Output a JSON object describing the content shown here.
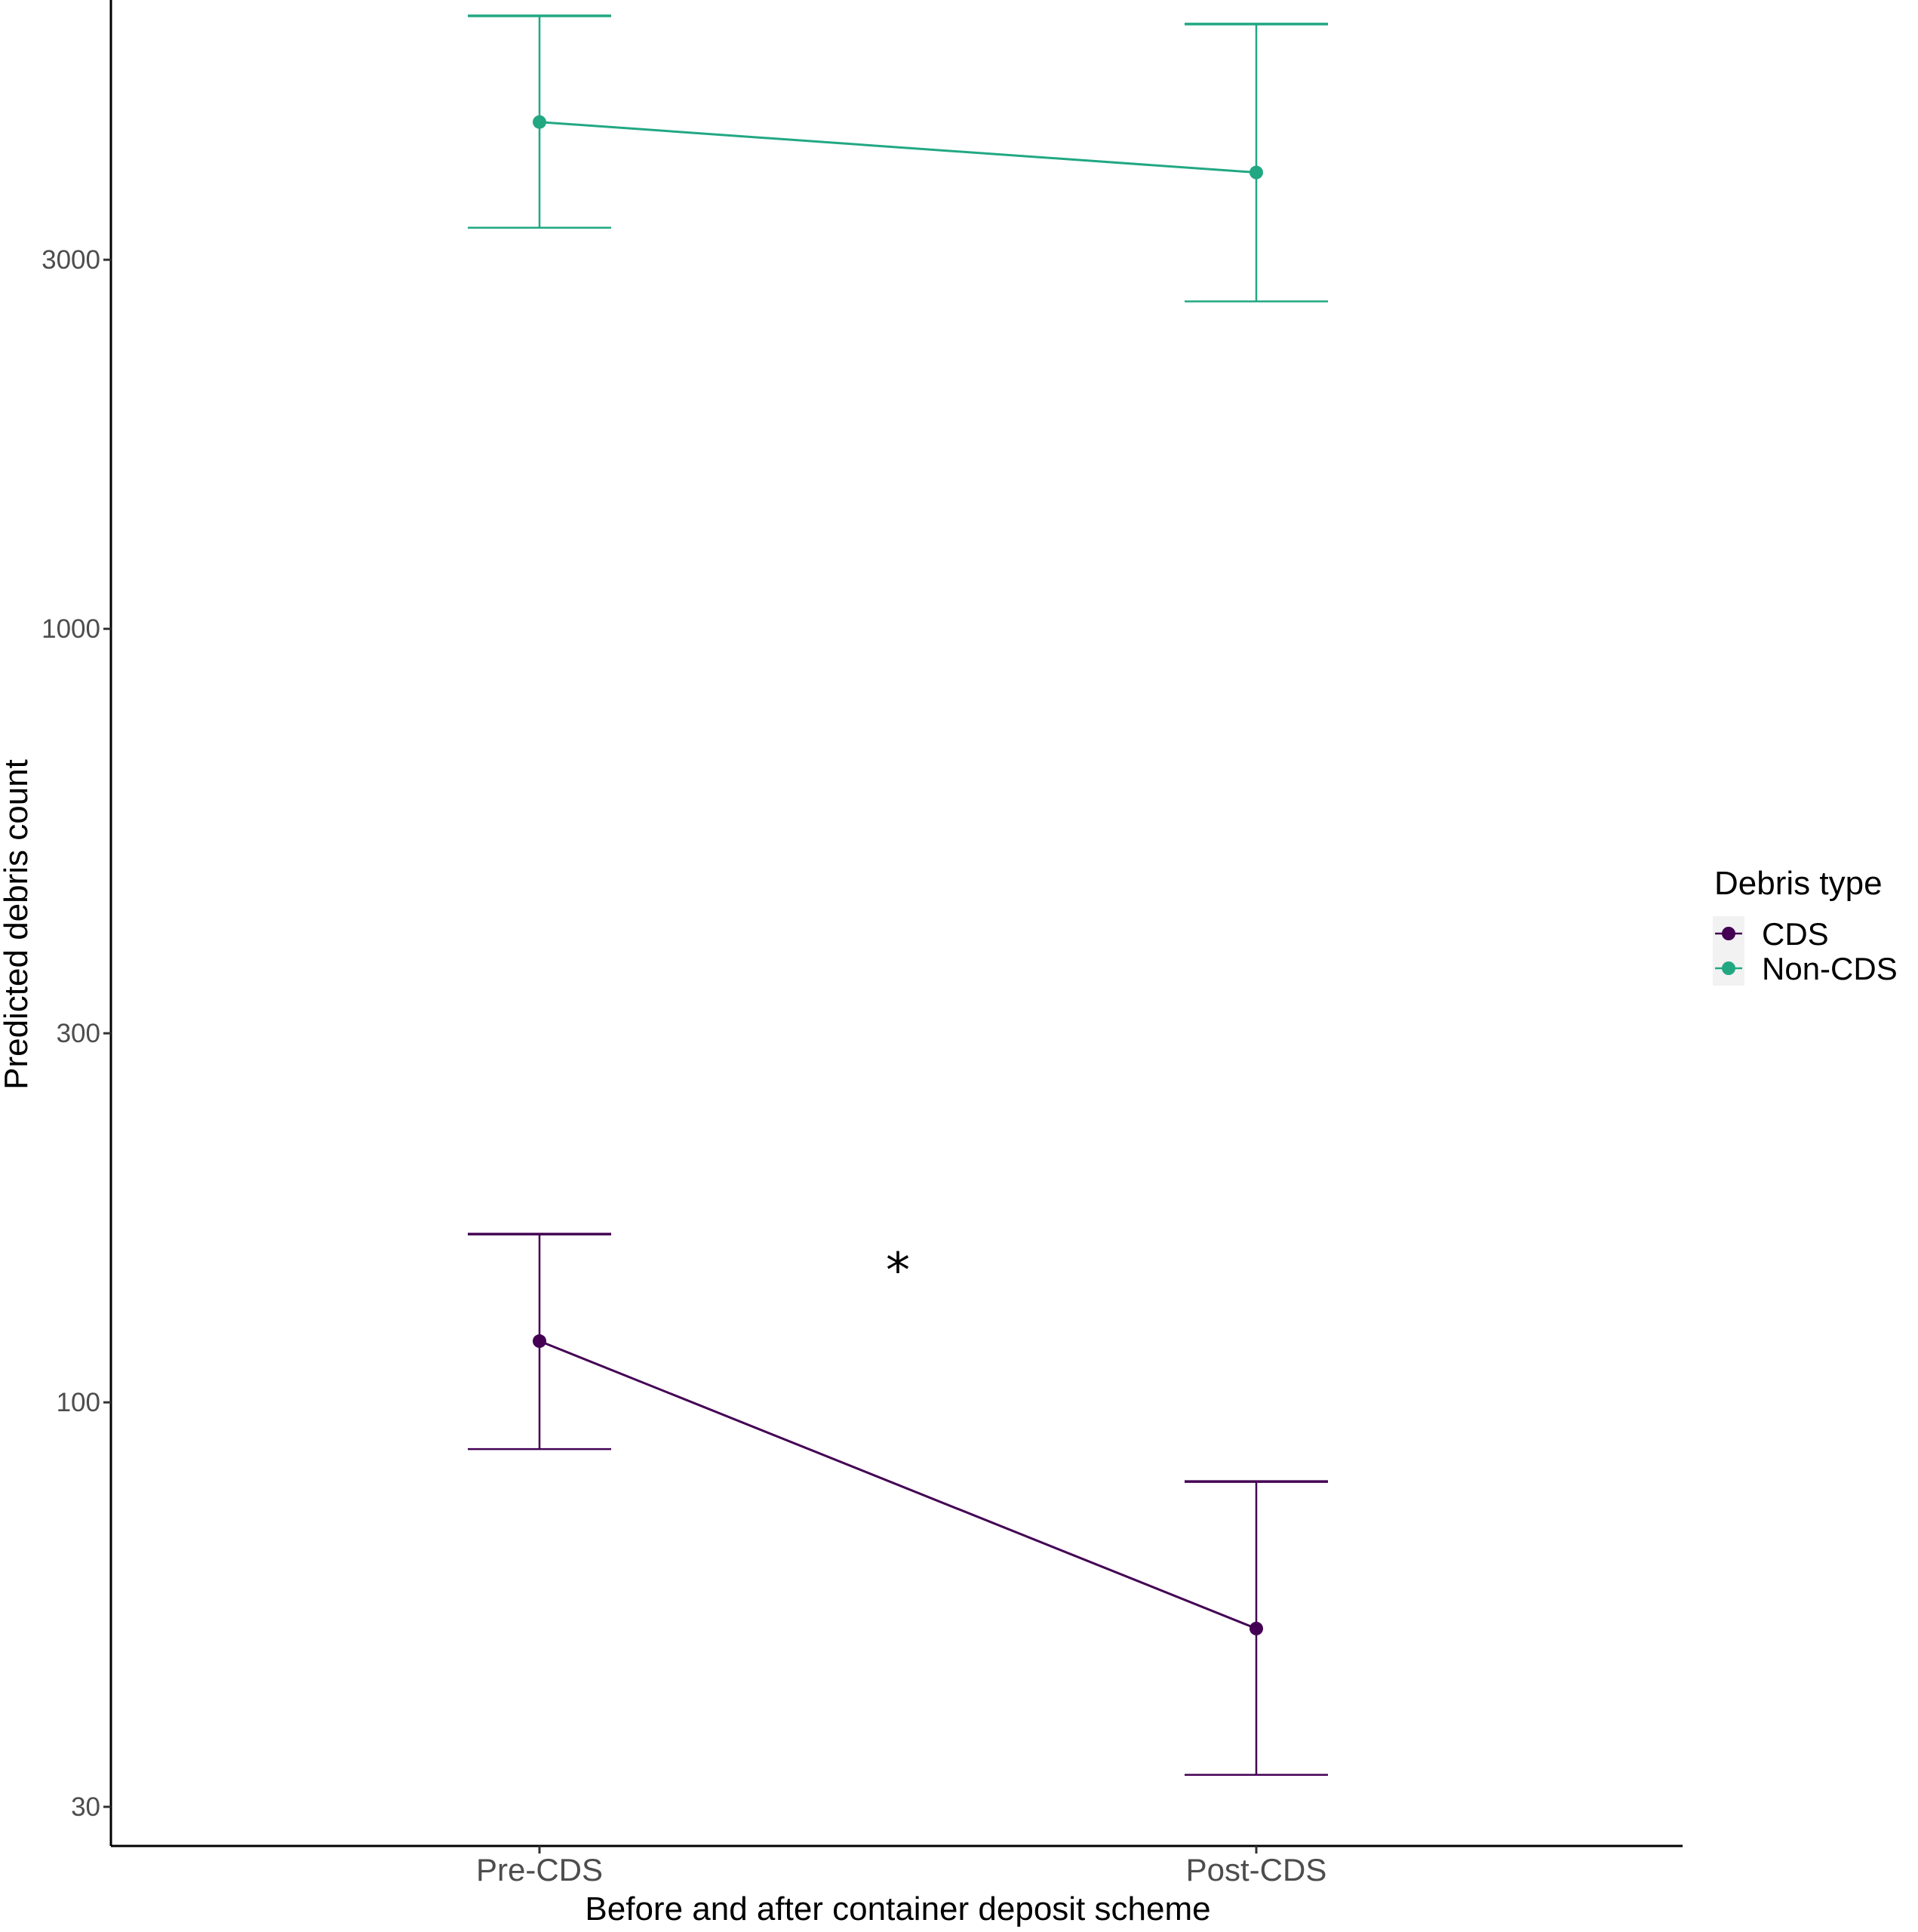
{
  "chart_data": {
    "type": "line",
    "xlabel": "Before and after container deposit scheme",
    "ylabel": "Predicted debris count",
    "categories": [
      "Pre-CDS",
      "Post-CDS"
    ],
    "y_scale": "log",
    "ylim": [
      26.7,
      6500
    ],
    "y_ticks": [
      30,
      100,
      300,
      1000,
      3000
    ],
    "grid": false,
    "legend": {
      "title": "Debris type",
      "position": "right"
    },
    "series": [
      {
        "name": "CDS",
        "color": "#440154",
        "values": [
          120,
          51
        ],
        "lower": [
          87,
          33
        ],
        "upper": [
          165,
          79
        ]
      },
      {
        "name": "Non-CDS",
        "color": "#21A883",
        "values": [
          4520,
          3890
        ],
        "lower": [
          3300,
          2650
        ],
        "upper": [
          6200,
          6050
        ]
      }
    ],
    "annotations": [
      {
        "text": "*",
        "x_between": [
          "Pre-CDS",
          "Post-CDS"
        ],
        "y": 150
      }
    ]
  }
}
